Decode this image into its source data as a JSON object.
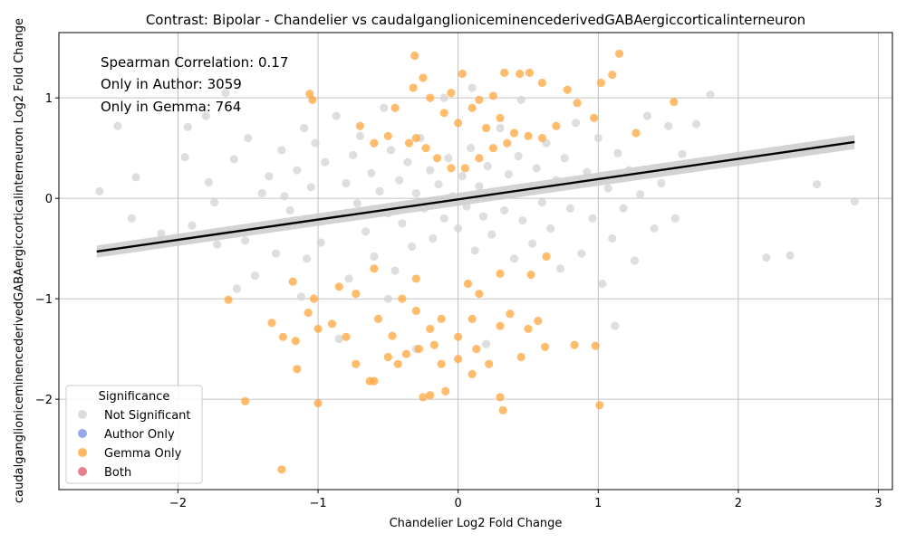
{
  "chart_data": {
    "type": "scatter",
    "title": "Contrast: Bipolar - Chandelier vs caudalganglioniceminencederivedGABAergiccorticalinterneuron",
    "xlabel": "Chandelier Log2 Fold Change",
    "ylabel": "caudalganglioniceminencederivedGABAergiccorticalinterneuron Log2 Fold Change",
    "xlim": [
      -2.85,
      3.1
    ],
    "ylim": [
      -2.9,
      1.65
    ],
    "xticks": [
      -2,
      -1,
      0,
      1,
      2,
      3
    ],
    "yticks": [
      -2,
      -1,
      0,
      1
    ],
    "grid": true,
    "annotations": [
      "Spearman Correlation: 0.17",
      "Only in Author: 3059",
      "Only in Gemma: 764"
    ],
    "legend": {
      "title": "Significance",
      "placement": "lower-left",
      "entries": [
        {
          "name": "Not Significant",
          "color": "#d3d3d3"
        },
        {
          "name": "Author Only",
          "color": "#7b93e0"
        },
        {
          "name": "Gemma Only",
          "color": "#ffa53c"
        },
        {
          "name": "Both",
          "color": "#e06070"
        }
      ]
    },
    "regression": {
      "x_start": -2.58,
      "y_start": -0.53,
      "x_end": 2.83,
      "y_end": 0.56,
      "band_start": 0.06,
      "band_end": 0.07,
      "color": "#000000",
      "band_color": "#c8c8c8"
    },
    "series": [
      {
        "name": "Not Significant",
        "color": "#d3d3d3",
        "points": [
          [
            -2.56,
            0.07
          ],
          [
            -2.43,
            0.72
          ],
          [
            -2.33,
            -0.2
          ],
          [
            -2.3,
            0.21
          ],
          [
            -2.12,
            -0.35
          ],
          [
            -1.93,
            0.71
          ],
          [
            -1.95,
            0.41
          ],
          [
            -1.9,
            -0.27
          ],
          [
            -1.8,
            0.82
          ],
          [
            -1.78,
            0.16
          ],
          [
            -1.74,
            -0.04
          ],
          [
            -1.72,
            -0.46
          ],
          [
            -1.66,
            1.05
          ],
          [
            -1.6,
            0.39
          ],
          [
            -1.58,
            -0.9
          ],
          [
            -1.52,
            -0.42
          ],
          [
            -1.5,
            0.6
          ],
          [
            -1.45,
            -0.77
          ],
          [
            -1.4,
            0.05
          ],
          [
            -1.38,
            -0.3
          ],
          [
            -1.35,
            0.22
          ],
          [
            -1.3,
            -0.55
          ],
          [
            -1.26,
            0.48
          ],
          [
            -1.24,
            0.02
          ],
          [
            -1.2,
            -0.12
          ],
          [
            -1.15,
            0.28
          ],
          [
            -1.12,
            -0.98
          ],
          [
            -1.1,
            0.7
          ],
          [
            -1.08,
            -0.6
          ],
          [
            -1.05,
            0.11
          ],
          [
            -1.02,
            0.55
          ],
          [
            -0.98,
            -0.44
          ],
          [
            -0.95,
            0.36
          ],
          [
            -0.9,
            -0.2
          ],
          [
            -0.87,
            0.82
          ],
          [
            -0.85,
            -1.4
          ],
          [
            -0.8,
            0.15
          ],
          [
            -0.78,
            -0.8
          ],
          [
            -0.75,
            0.43
          ],
          [
            -0.72,
            -0.05
          ],
          [
            -0.7,
            0.62
          ],
          [
            -0.66,
            -0.33
          ],
          [
            -0.62,
            0.25
          ],
          [
            -0.6,
            -0.58
          ],
          [
            -0.56,
            0.07
          ],
          [
            -0.53,
            0.9
          ],
          [
            -0.5,
            -0.15
          ],
          [
            -0.48,
            0.48
          ],
          [
            -0.45,
            -0.72
          ],
          [
            -0.42,
            0.18
          ],
          [
            -0.4,
            -0.25
          ],
          [
            -0.36,
            0.36
          ],
          [
            -0.33,
            -0.48
          ],
          [
            -0.3,
            0.05
          ],
          [
            -0.27,
            0.6
          ],
          [
            -0.24,
            -0.1
          ],
          [
            -0.2,
            0.28
          ],
          [
            -0.18,
            -0.4
          ],
          [
            -0.14,
            0.14
          ],
          [
            -0.1,
            -0.2
          ],
          [
            -0.07,
            0.4
          ],
          [
            -0.04,
            0.02
          ],
          [
            0.0,
            -0.3
          ],
          [
            0.03,
            0.22
          ],
          [
            0.06,
            -0.08
          ],
          [
            0.09,
            0.5
          ],
          [
            0.12,
            -0.52
          ],
          [
            0.15,
            0.12
          ],
          [
            0.18,
            -0.18
          ],
          [
            0.21,
            0.32
          ],
          [
            0.24,
            -0.36
          ],
          [
            0.27,
            0.06
          ],
          [
            0.3,
            0.7
          ],
          [
            0.33,
            -0.12
          ],
          [
            0.36,
            0.24
          ],
          [
            0.4,
            -0.6
          ],
          [
            0.43,
            0.42
          ],
          [
            0.46,
            -0.22
          ],
          [
            0.5,
            0.1
          ],
          [
            0.53,
            -0.45
          ],
          [
            0.56,
            0.3
          ],
          [
            0.6,
            -0.04
          ],
          [
            0.63,
            0.55
          ],
          [
            0.66,
            -0.3
          ],
          [
            0.7,
            0.18
          ],
          [
            0.73,
            -0.7
          ],
          [
            0.76,
            0.4
          ],
          [
            0.8,
            -0.1
          ],
          [
            0.84,
            0.75
          ],
          [
            0.88,
            -0.55
          ],
          [
            0.92,
            0.26
          ],
          [
            0.96,
            -0.2
          ],
          [
            1.0,
            0.6
          ],
          [
            1.03,
            -0.85
          ],
          [
            1.07,
            0.1
          ],
          [
            1.1,
            -0.4
          ],
          [
            1.14,
            0.45
          ],
          [
            1.18,
            -0.1
          ],
          [
            1.22,
            0.28
          ],
          [
            1.26,
            -0.62
          ],
          [
            1.3,
            0.04
          ],
          [
            1.35,
            0.82
          ],
          [
            1.4,
            -0.3
          ],
          [
            1.45,
            0.15
          ],
          [
            1.5,
            0.72
          ],
          [
            1.55,
            -0.2
          ],
          [
            1.6,
            0.44
          ],
          [
            1.7,
            0.74
          ],
          [
            1.8,
            1.03
          ],
          [
            1.12,
            -1.27
          ],
          [
            2.2,
            -0.59
          ],
          [
            2.37,
            -0.57
          ],
          [
            2.56,
            0.14
          ],
          [
            2.83,
            -0.03
          ],
          [
            -0.3,
            -1.5
          ],
          [
            -0.1,
            1.0
          ],
          [
            0.2,
            -1.45
          ],
          [
            -0.5,
            -1.0
          ],
          [
            0.1,
            1.1
          ],
          [
            0.45,
            0.98
          ]
        ]
      },
      {
        "name": "Gemma Only",
        "color": "#ffa53c",
        "points": [
          [
            -1.26,
            -2.7
          ],
          [
            -1.52,
            -2.02
          ],
          [
            -1.0,
            -2.04
          ],
          [
            -0.25,
            -1.98
          ],
          [
            -0.2,
            -1.96
          ],
          [
            -0.09,
            -1.92
          ],
          [
            0.32,
            -2.11
          ],
          [
            0.3,
            -1.98
          ],
          [
            1.01,
            -2.06
          ],
          [
            -0.63,
            -1.82
          ],
          [
            -0.6,
            -1.82
          ],
          [
            0.1,
            -1.75
          ],
          [
            -1.15,
            -1.7
          ],
          [
            -0.73,
            -1.65
          ],
          [
            -0.43,
            -1.65
          ],
          [
            -0.12,
            -1.65
          ],
          [
            0.0,
            -1.6
          ],
          [
            0.22,
            -1.65
          ],
          [
            0.45,
            -1.58
          ],
          [
            -0.5,
            -1.58
          ],
          [
            -0.37,
            -1.55
          ],
          [
            -0.28,
            -1.5
          ],
          [
            -0.17,
            -1.46
          ],
          [
            0.13,
            -1.5
          ],
          [
            0.62,
            -1.48
          ],
          [
            0.83,
            -1.46
          ],
          [
            0.98,
            -1.47
          ],
          [
            -1.25,
            -1.38
          ],
          [
            -1.16,
            -1.42
          ],
          [
            -1.0,
            -1.3
          ],
          [
            -0.8,
            -1.38
          ],
          [
            -0.47,
            -1.37
          ],
          [
            -0.2,
            -1.3
          ],
          [
            0.0,
            -1.38
          ],
          [
            0.3,
            -1.27
          ],
          [
            0.5,
            -1.3
          ],
          [
            0.57,
            -1.22
          ],
          [
            -1.33,
            -1.24
          ],
          [
            -1.07,
            -1.14
          ],
          [
            -0.9,
            -1.25
          ],
          [
            -0.57,
            -1.2
          ],
          [
            -0.3,
            -1.12
          ],
          [
            -0.12,
            -1.2
          ],
          [
            0.1,
            -1.2
          ],
          [
            0.37,
            -1.15
          ],
          [
            -1.64,
            -1.01
          ],
          [
            -1.18,
            -0.83
          ],
          [
            -1.03,
            -1.0
          ],
          [
            -0.73,
            -0.95
          ],
          [
            -0.4,
            -1.0
          ],
          [
            0.15,
            -0.95
          ],
          [
            0.52,
            -0.76
          ],
          [
            0.63,
            -0.58
          ],
          [
            -0.85,
            -0.88
          ],
          [
            -0.6,
            -0.7
          ],
          [
            -0.3,
            -0.8
          ],
          [
            0.07,
            -0.85
          ],
          [
            0.3,
            -0.75
          ],
          [
            -0.2,
            1.0
          ],
          [
            -0.1,
            0.85
          ],
          [
            0.0,
            0.75
          ],
          [
            0.1,
            0.9
          ],
          [
            0.2,
            0.7
          ],
          [
            0.3,
            0.8
          ],
          [
            -0.3,
            0.6
          ],
          [
            0.4,
            0.65
          ],
          [
            -0.23,
            0.5
          ],
          [
            0.25,
            0.5
          ],
          [
            0.15,
            0.4
          ],
          [
            -0.15,
            0.4
          ],
          [
            0.05,
            0.3
          ],
          [
            -0.05,
            0.3
          ],
          [
            0.35,
            0.55
          ],
          [
            -0.35,
            0.55
          ],
          [
            0.5,
            0.62
          ],
          [
            -0.5,
            0.62
          ],
          [
            0.6,
            0.6
          ],
          [
            -0.6,
            0.55
          ],
          [
            -1.06,
            1.04
          ],
          [
            -1.04,
            0.98
          ],
          [
            -0.31,
            1.42
          ],
          [
            -0.25,
            1.2
          ],
          [
            -0.32,
            1.1
          ],
          [
            0.03,
            1.24
          ],
          [
            0.33,
            1.25
          ],
          [
            0.44,
            1.24
          ],
          [
            0.51,
            1.25
          ],
          [
            0.6,
            1.15
          ],
          [
            0.78,
            1.08
          ],
          [
            1.02,
            1.15
          ],
          [
            1.1,
            1.23
          ],
          [
            1.15,
            1.44
          ],
          [
            0.85,
            0.95
          ],
          [
            0.97,
            0.8
          ],
          [
            1.27,
            0.65
          ],
          [
            1.54,
            0.96
          ],
          [
            0.25,
            1.02
          ],
          [
            -0.45,
            0.9
          ],
          [
            0.7,
            0.72
          ],
          [
            -0.7,
            0.72
          ],
          [
            0.15,
            0.98
          ],
          [
            -0.05,
            1.05
          ]
        ]
      }
    ]
  }
}
